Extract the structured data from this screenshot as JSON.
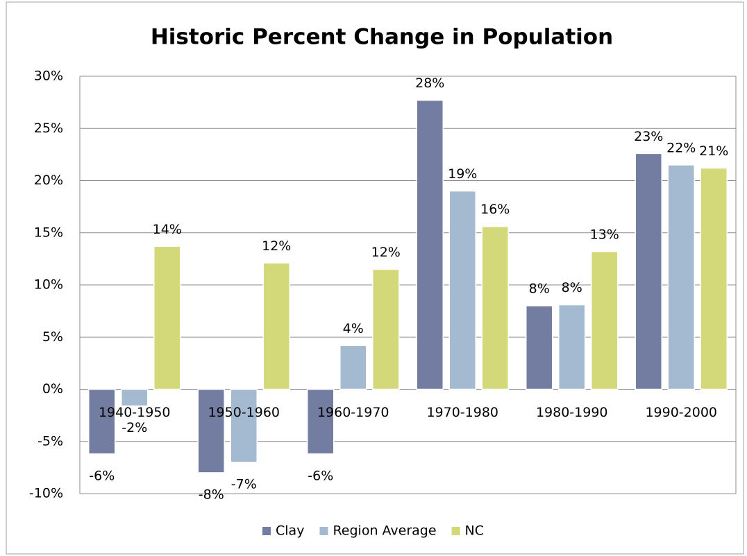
{
  "chart_data": {
    "type": "bar",
    "title": "Historic Percent Change in Population",
    "categories": [
      "1940-1950",
      "1950-1960",
      "1960-1970",
      "1970-1980",
      "1980-1990",
      "1990-2000"
    ],
    "series": [
      {
        "name": "Clay",
        "color": "#737ca1",
        "values": [
          -6.2,
          -8,
          -6.2,
          27.7,
          8,
          22.6
        ],
        "value_labels": [
          "-6%",
          "-8%",
          "-6%",
          "28%",
          "8%",
          "23%"
        ]
      },
      {
        "name": "Region Average",
        "color": "#a3bad1",
        "values": [
          -1.6,
          -7,
          4.2,
          19,
          8.1,
          21.5
        ],
        "value_labels": [
          "-2%",
          "-7%",
          "4%",
          "19%",
          "8%",
          "22%"
        ]
      },
      {
        "name": "NC",
        "color": "#d3d878",
        "values": [
          13.7,
          12.1,
          11.5,
          15.6,
          13.2,
          21.2
        ],
        "value_labels": [
          "14%",
          "12%",
          "12%",
          "16%",
          "13%",
          "21%"
        ]
      }
    ],
    "ylim": [
      -10,
      30
    ],
    "yticks": [
      {
        "value": -10,
        "label": "-10%"
      },
      {
        "value": -5,
        "label": "-5%"
      },
      {
        "value": 0,
        "label": "0%"
      },
      {
        "value": 5,
        "label": "5%"
      },
      {
        "value": 10,
        "label": "10%"
      },
      {
        "value": 15,
        "label": "15%"
      },
      {
        "value": 20,
        "label": "20%"
      },
      {
        "value": 25,
        "label": "25%"
      },
      {
        "value": 30,
        "label": "30%"
      }
    ],
    "grid": true,
    "legend": "bottom"
  }
}
